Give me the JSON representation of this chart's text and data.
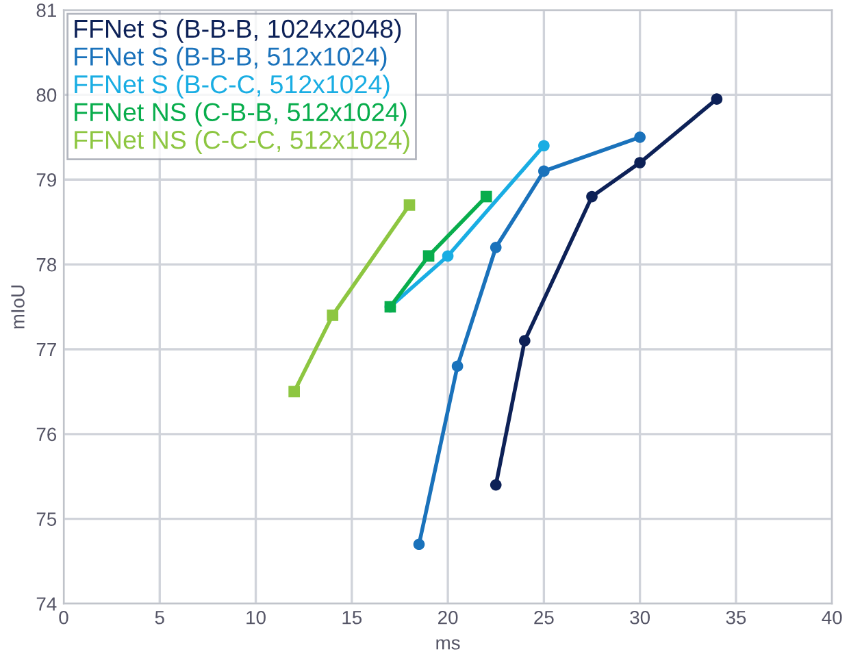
{
  "chart_data": {
    "type": "line",
    "xlabel": "ms",
    "ylabel": "mIoU",
    "xlim": [
      0,
      40
    ],
    "xticks": [
      0,
      5,
      10,
      15,
      20,
      25,
      30,
      35,
      40
    ],
    "ylim": [
      74,
      81
    ],
    "yticks": [
      74,
      75,
      76,
      77,
      78,
      79,
      80,
      81
    ],
    "grid": true,
    "legend": "top left",
    "series": [
      {
        "name": "FFNet S (B-B-B, 1024x2048)",
        "color": "#0d2157",
        "marker": "circle",
        "x": [
          22.5,
          24,
          27.5,
          30,
          34
        ],
        "values": [
          75.4,
          77.1,
          78.8,
          79.2,
          79.95
        ]
      },
      {
        "name": "FFNet S (B-B-B, 512x1024)",
        "color": "#1a72bb",
        "marker": "circle",
        "x": [
          18.5,
          20.5,
          22.5,
          25,
          30
        ],
        "values": [
          74.7,
          76.8,
          78.2,
          79.1,
          79.5
        ]
      },
      {
        "name": "FFNet S (B-C-C, 512x1024)",
        "color": "#19ade3",
        "marker": "circle",
        "x": [
          17,
          20,
          25
        ],
        "values": [
          77.5,
          78.1,
          79.4
        ]
      },
      {
        "name": "FFNet NS (C-B-B, 512x1024)",
        "color": "#08ad4c",
        "marker": "square",
        "x": [
          17,
          19,
          22
        ],
        "values": [
          77.5,
          78.1,
          78.8
        ]
      },
      {
        "name": "FFNet NS (C-C-C, 512x1024)",
        "color": "#8dc641",
        "marker": "square",
        "x": [
          12,
          14,
          18
        ],
        "values": [
          76.5,
          77.4,
          78.7
        ]
      }
    ]
  }
}
